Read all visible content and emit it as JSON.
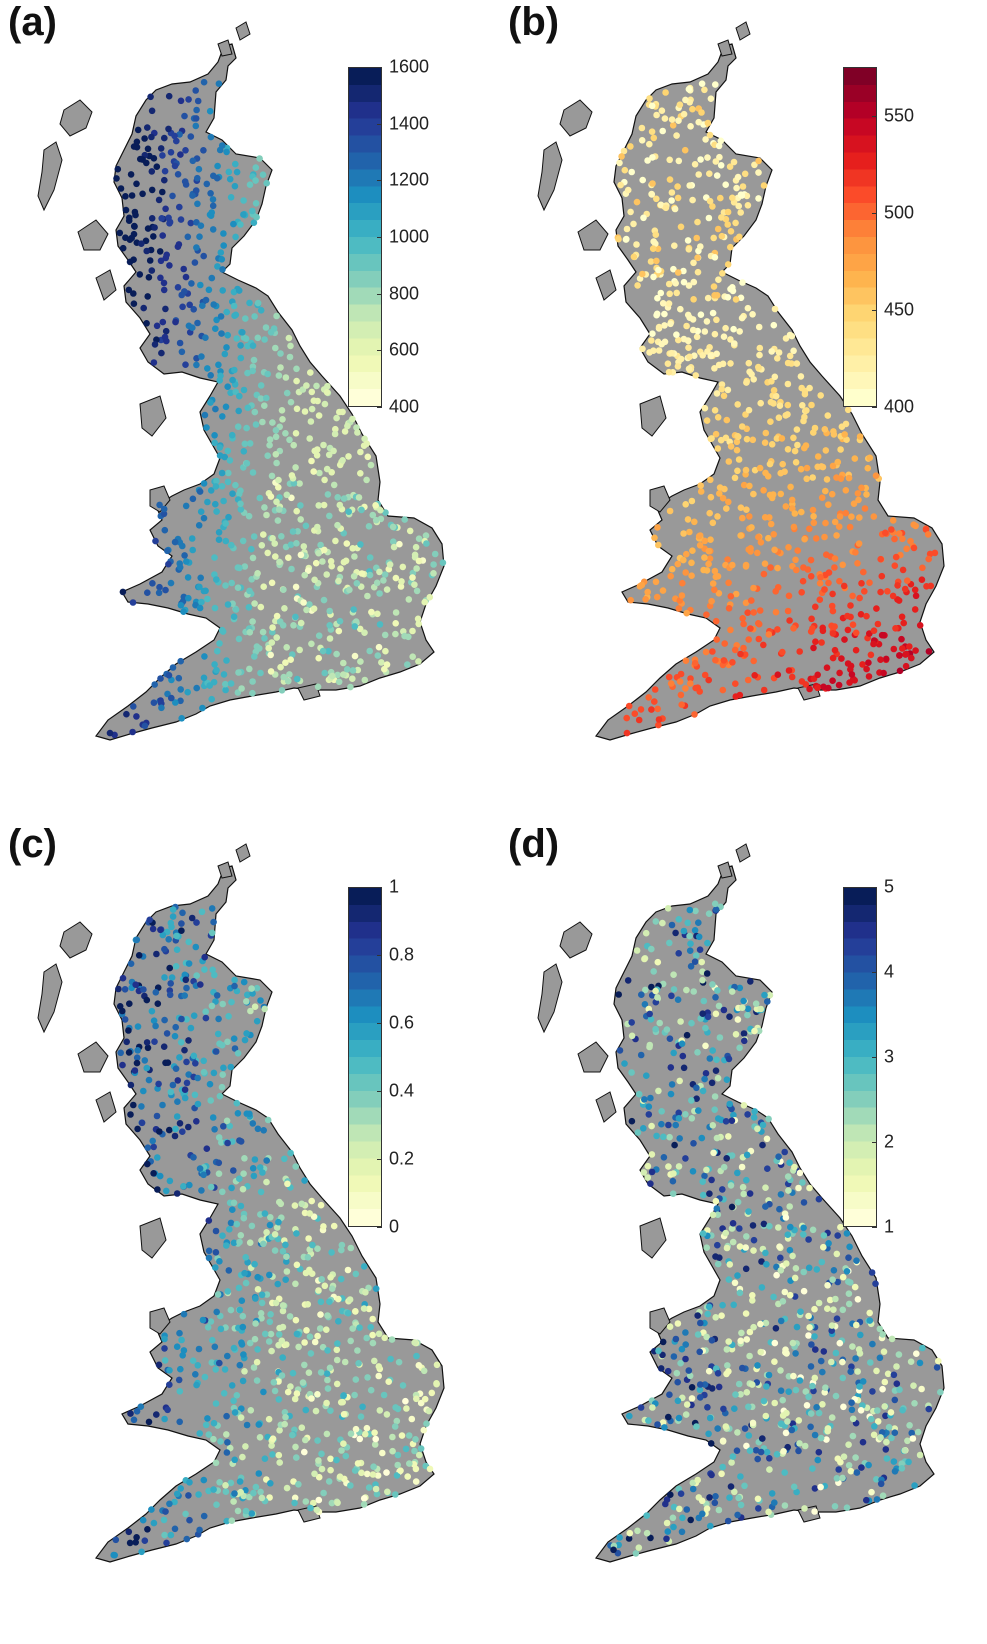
{
  "figure": {
    "panels": [
      {
        "label": "(a)",
        "colormap": [
          "#ffffd9",
          "#edf8b1",
          "#c7e9b4",
          "#7fcdbb",
          "#41b6c4",
          "#1d91c0",
          "#225ea8",
          "#253494",
          "#081d58"
        ],
        "ticks": [
          "1600",
          "1400",
          "1200",
          "1000",
          "800",
          "600",
          "400"
        ],
        "range": [
          400,
          1600
        ],
        "pattern": "west-high"
      },
      {
        "label": "(b)",
        "colormap": [
          "#ffffcc",
          "#ffeda0",
          "#fed976",
          "#feb24c",
          "#fd8d3c",
          "#fc4e2a",
          "#e31a1c",
          "#bd0026",
          "#800026"
        ],
        "ticks": [
          "550",
          "500",
          "450",
          "400"
        ],
        "range": [
          400,
          575
        ],
        "pattern": "southeast-high"
      },
      {
        "label": "(c)",
        "colormap": [
          "#ffffd9",
          "#edf8b1",
          "#c7e9b4",
          "#7fcdbb",
          "#41b6c4",
          "#1d91c0",
          "#225ea8",
          "#253494",
          "#081d58"
        ],
        "ticks": [
          "1",
          "0.8",
          "0.6",
          "0.4",
          "0.2",
          "0"
        ],
        "range": [
          0,
          1
        ],
        "pattern": "west-high-noisy"
      },
      {
        "label": "(d)",
        "colormap": [
          "#ffffd9",
          "#edf8b1",
          "#c7e9b4",
          "#7fcdbb",
          "#41b6c4",
          "#1d91c0",
          "#225ea8",
          "#253494",
          "#081d58"
        ],
        "ticks": [
          "5",
          "4",
          "3",
          "2",
          "1"
        ],
        "range": [
          1,
          5
        ],
        "pattern": "mixed"
      }
    ],
    "land_color": "#999999",
    "coast_color": "#111111"
  }
}
